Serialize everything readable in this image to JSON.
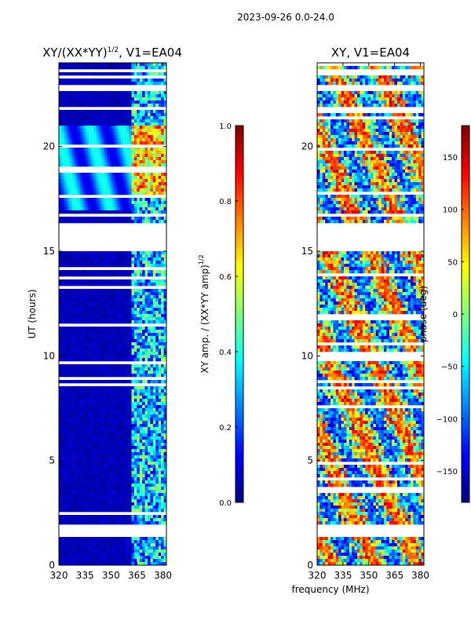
{
  "suptitle": "2023-09-26 0.0-24.0",
  "xlabel": "frequency (MHz)",
  "colors": {
    "axis": "#000000",
    "background": "#ffffff",
    "jet": [
      "#00007f",
      "#0000ff",
      "#007fff",
      "#00ffff",
      "#7fff7f",
      "#ffff00",
      "#ff7f00",
      "#ff0000",
      "#7f0000"
    ]
  },
  "chart_data": [
    {
      "type": "heatmap",
      "title_main": "XY/(XX*YY)",
      "title_sup": "1/2",
      "title_tail": ", V1=EA04",
      "ylabel": "UT (hours)",
      "xlim": [
        320,
        382
      ],
      "ylim": [
        0,
        24
      ],
      "xticks": [
        320,
        335,
        350,
        365,
        380
      ],
      "yticks": [
        0,
        5,
        10,
        15,
        20
      ],
      "colorbar": {
        "label_main": "XY amp. / (XX*YY amp)",
        "label_sup": "1/2",
        "range": [
          0.0,
          1.0
        ],
        "ticks": [
          "0.0",
          "0.2",
          "0.4",
          "0.6",
          "0.8",
          "1.0"
        ]
      },
      "gaps_hours": [
        [
          1.3,
          1.9
        ],
        [
          15.0,
          16.3
        ],
        [
          16.6,
          16.8
        ],
        [
          21.7,
          21.9
        ],
        [
          22.6,
          22.9
        ],
        [
          23.5,
          23.7
        ]
      ]
    },
    {
      "type": "heatmap",
      "title": "XY, V1=EA04",
      "ylabel": "",
      "xlim": [
        320,
        382
      ],
      "ylim": [
        0,
        24
      ],
      "xticks": [
        320,
        335,
        350,
        365,
        380
      ],
      "yticks": [
        0,
        5,
        10,
        15,
        20
      ],
      "colorbar": {
        "label": "phase (deg)",
        "range": [
          -180,
          180
        ],
        "ticks": [
          "−150",
          "−100",
          "−50",
          "0",
          "50",
          "100",
          "150"
        ]
      },
      "gaps_hours": [
        [
          1.3,
          1.9
        ],
        [
          15.0,
          16.3
        ],
        [
          16.6,
          16.8
        ],
        [
          21.7,
          21.9
        ],
        [
          22.6,
          22.9
        ],
        [
          23.5,
          23.7
        ]
      ]
    }
  ]
}
